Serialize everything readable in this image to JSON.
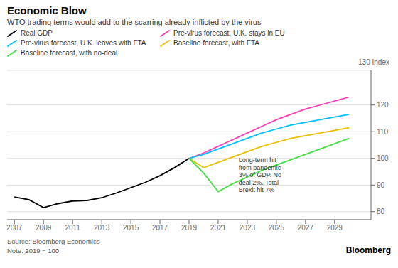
{
  "chart_data": {
    "type": "line",
    "title": "Economic Blow",
    "subtitle": "WTO trading terms would add to the scarring already inflicted by the virus",
    "ylabel": "130 Index",
    "source": "Source: Bloomberg Economics",
    "note": "Note: 2019 = 100",
    "credit": "Bloomberg",
    "annotations": [
      {
        "text": "Long-term hit\nfrom pandemic\n3% of GDP. No\ndeal 2%. Total\nBrexit hit 7%",
        "x": 2022.4,
        "y": 93.5
      }
    ],
    "xlim": [
      2006.5,
      2031.5
    ],
    "ylim": [
      77,
      133
    ],
    "xticks": [
      2007,
      2009,
      2011,
      2013,
      2015,
      2017,
      2019,
      2021,
      2023,
      2025,
      2027,
      2029
    ],
    "yticks": [
      80,
      90,
      100,
      110,
      120
    ],
    "grid": true,
    "legend": "top",
    "series": [
      {
        "name": "Real GDP",
        "color": "#000000",
        "x": [
          2007,
          2008,
          2009,
          2010,
          2011,
          2012,
          2013,
          2014,
          2015,
          2016,
          2017,
          2018,
          2019
        ],
        "values": [
          85.5,
          84.5,
          81.5,
          83.0,
          84.0,
          84.2,
          85.2,
          87.0,
          89.0,
          91.0,
          93.5,
          96.5,
          100.0
        ]
      },
      {
        "name": "Pre-virus forecast, U.K. stays in EU",
        "color": "#ff3eb5",
        "x": [
          2019,
          2020,
          2021,
          2022,
          2023,
          2024,
          2025,
          2026,
          2027,
          2028,
          2029,
          2030
        ],
        "values": [
          100.0,
          102.0,
          104.5,
          107.0,
          109.5,
          112.0,
          114.5,
          116.5,
          118.5,
          120.0,
          121.5,
          123.0
        ]
      },
      {
        "name": "Pre-virus forecast, U.K. leaves with FTA",
        "color": "#00c0ff",
        "x": [
          2019,
          2020,
          2021,
          2022,
          2023,
          2024,
          2025,
          2026,
          2027,
          2028,
          2029,
          2030
        ],
        "values": [
          100.0,
          101.5,
          103.5,
          105.5,
          107.5,
          109.5,
          111.0,
          112.5,
          113.5,
          114.5,
          115.5,
          116.5
        ]
      },
      {
        "name": "Baseline forecast, with FTA",
        "color": "#e8c000",
        "x": [
          2019,
          2020,
          2021,
          2022,
          2023,
          2024,
          2025,
          2026,
          2027,
          2028,
          2029,
          2030
        ],
        "values": [
          100.0,
          96.5,
          98.5,
          100.5,
          102.5,
          104.5,
          106.0,
          107.5,
          108.5,
          109.5,
          110.5,
          111.5
        ]
      },
      {
        "name": "Baseline forecast, with no-deal",
        "color": "#44dd44",
        "x": [
          2019,
          2020,
          2021,
          2022,
          2023,
          2024,
          2025,
          2026,
          2027,
          2028,
          2029,
          2030
        ],
        "values": [
          100.0,
          94.5,
          87.5,
          90.5,
          93.0,
          95.5,
          97.5,
          99.5,
          101.5,
          103.5,
          105.5,
          107.5
        ]
      }
    ]
  }
}
